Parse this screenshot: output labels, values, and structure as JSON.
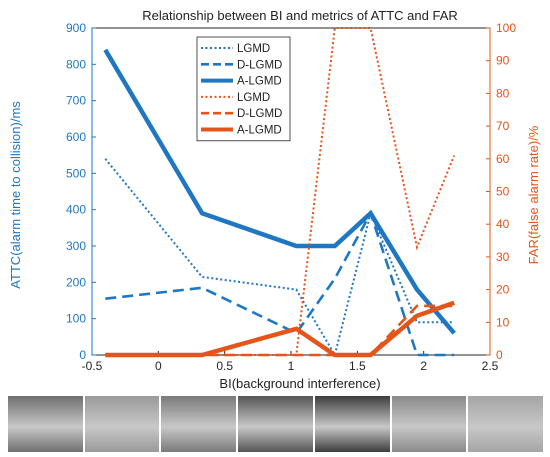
{
  "chart_data": {
    "type": "line",
    "title": "Relationship between BI and metrics of ATTC and FAR",
    "xlabel": "BI(background interference)",
    "ylabel_left": "ATTC(alarm time to collision)/ms",
    "ylabel_right": "FAR(false alarm rate)/%",
    "xlim": [
      -0.5,
      2.5
    ],
    "ylim_left": [
      0,
      900
    ],
    "ylim_right": [
      0,
      100
    ],
    "x_ticks": [
      "-0.5",
      "0",
      "0.5",
      "1",
      "1.5",
      "2",
      "2.5"
    ],
    "y_ticks_left": [
      "0",
      "100",
      "200",
      "300",
      "400",
      "500",
      "600",
      "700",
      "800",
      "900"
    ],
    "y_ticks_right": [
      "0",
      "10",
      "20",
      "30",
      "40",
      "50",
      "60",
      "70",
      "80",
      "90",
      "100"
    ],
    "x": [
      -0.4,
      0.33,
      1.04,
      1.33,
      1.6,
      1.95,
      2.23
    ],
    "colors": {
      "attc": "#1f77c4",
      "far": "#e5541a"
    },
    "legend_placement": "top-center",
    "series": [
      {
        "name": "LGMD",
        "metric": "ATTC",
        "style": "dotted",
        "values": [
          540,
          215,
          180,
          0,
          390,
          90,
          90
        ]
      },
      {
        "name": "D-LGMD",
        "metric": "ATTC",
        "style": "dashed",
        "values": [
          155,
          185,
          60,
          210,
          390,
          0,
          0
        ]
      },
      {
        "name": "A-LGMD",
        "metric": "ATTC",
        "style": "solid",
        "values": [
          840,
          390,
          300,
          300,
          390,
          180,
          60
        ]
      },
      {
        "name": "LGMD",
        "metric": "FAR",
        "style": "dotted",
        "values": [
          0,
          0,
          0,
          100,
          100,
          33,
          61
        ]
      },
      {
        "name": "D-LGMD",
        "metric": "FAR",
        "style": "dashed",
        "values": [
          0,
          0,
          0,
          0,
          0,
          15,
          15
        ]
      },
      {
        "name": "A-LGMD",
        "metric": "FAR",
        "style": "solid",
        "values": [
          0,
          0,
          8,
          0,
          0,
          12,
          16
        ]
      }
    ]
  },
  "thumbnails": [
    {
      "name": "street-scene",
      "tone": "#6f6f6f"
    },
    {
      "name": "car-road-scene",
      "tone": "#9a9a9a"
    },
    {
      "name": "office-desk-scene",
      "tone": "#7a7a7a"
    },
    {
      "name": "monitor-room-scene",
      "tone": "#555555"
    },
    {
      "name": "dark-ball-scene",
      "tone": "#3d3d3d"
    },
    {
      "name": "corridor-scene",
      "tone": "#8a8a8a"
    },
    {
      "name": "lab-room-scene",
      "tone": "#a5a5a5"
    }
  ]
}
